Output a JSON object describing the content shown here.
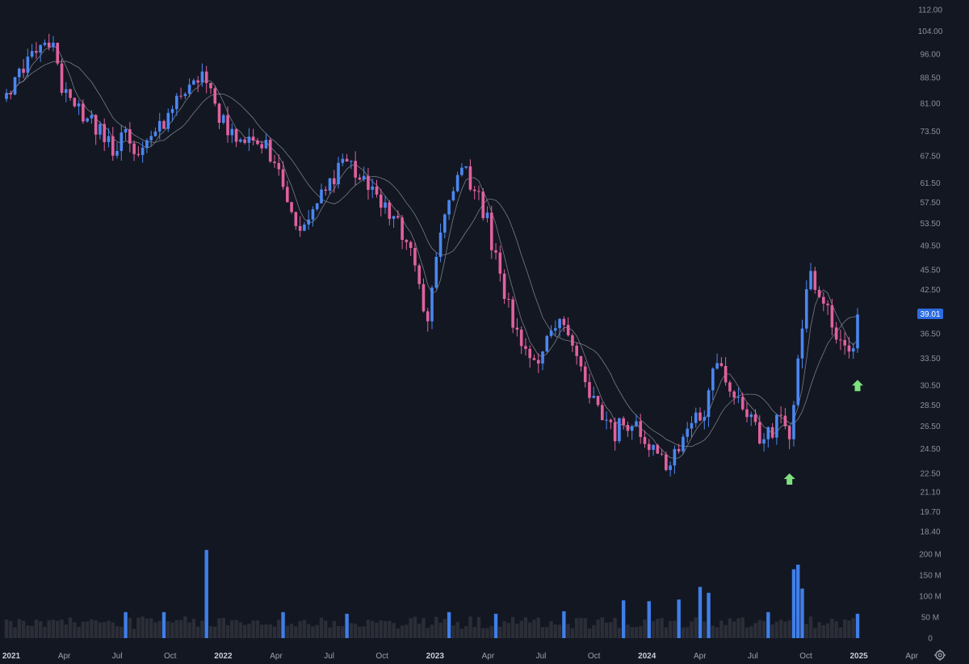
{
  "chart_data": {
    "type": "candlestick",
    "price_axis": {
      "scale": "log",
      "ticks": [
        "112.00",
        "104.00",
        "96.00",
        "88.50",
        "81.00",
        "73.50",
        "67.50",
        "61.50",
        "57.50",
        "53.50",
        "49.50",
        "45.50",
        "42.50",
        "36.50",
        "33.50",
        "30.50",
        "28.50",
        "26.50",
        "24.50",
        "22.50",
        "21.10",
        "19.70",
        "18.40"
      ],
      "last_price": "39.01"
    },
    "volume_axis": {
      "ticks": [
        "200 M",
        "150 M",
        "100 M",
        "50 M",
        "0"
      ],
      "max": 200
    },
    "time_axis": {
      "labels": [
        {
          "text": "2021",
          "year": true
        },
        {
          "text": "Apr",
          "year": false
        },
        {
          "text": "Jul",
          "year": false
        },
        {
          "text": "Oct",
          "year": false
        },
        {
          "text": "2022",
          "year": true
        },
        {
          "text": "Apr",
          "year": false
        },
        {
          "text": "Jul",
          "year": false
        },
        {
          "text": "Oct",
          "year": false
        },
        {
          "text": "2023",
          "year": true
        },
        {
          "text": "Apr",
          "year": false
        },
        {
          "text": "Jul",
          "year": false
        },
        {
          "text": "Oct",
          "year": false
        },
        {
          "text": "2024",
          "year": true
        },
        {
          "text": "Apr",
          "year": false
        },
        {
          "text": "Jul",
          "year": false
        },
        {
          "text": "Oct",
          "year": false
        },
        {
          "text": "2025",
          "year": true
        },
        {
          "text": "Apr",
          "year": false
        }
      ]
    },
    "anchors": [
      [
        0,
        83
      ],
      [
        6,
        95
      ],
      [
        11,
        102
      ],
      [
        13,
        86
      ],
      [
        16,
        80
      ],
      [
        19,
        76
      ],
      [
        22,
        74
      ],
      [
        25,
        70
      ],
      [
        28,
        72
      ],
      [
        31,
        68
      ],
      [
        34,
        71
      ],
      [
        37,
        76
      ],
      [
        40,
        82
      ],
      [
        43,
        86
      ],
      [
        45,
        90
      ],
      [
        48,
        83
      ],
      [
        51,
        76
      ],
      [
        54,
        72
      ],
      [
        57,
        73
      ],
      [
        60,
        70
      ],
      [
        63,
        67
      ],
      [
        66,
        58
      ],
      [
        69,
        52
      ],
      [
        72,
        55
      ],
      [
        76,
        62
      ],
      [
        80,
        66
      ],
      [
        84,
        62
      ],
      [
        88,
        58
      ],
      [
        93,
        52
      ],
      [
        96,
        46
      ],
      [
        99,
        38
      ],
      [
        101,
        48
      ],
      [
        104,
        58
      ],
      [
        107,
        64
      ],
      [
        110,
        61
      ],
      [
        113,
        54
      ],
      [
        116,
        44
      ],
      [
        119,
        38
      ],
      [
        122,
        35
      ],
      [
        125,
        34
      ],
      [
        128,
        36
      ],
      [
        131,
        38
      ],
      [
        134,
        34
      ],
      [
        137,
        30
      ],
      [
        140,
        27
      ],
      [
        143,
        26
      ],
      [
        146,
        27
      ],
      [
        149,
        26
      ],
      [
        152,
        24
      ],
      [
        155,
        23
      ],
      [
        158,
        24
      ],
      [
        161,
        27
      ],
      [
        164,
        28
      ],
      [
        167,
        34
      ],
      [
        169,
        31
      ],
      [
        172,
        29
      ],
      [
        175,
        27
      ],
      [
        178,
        25
      ],
      [
        181,
        27
      ],
      [
        184,
        26
      ],
      [
        187,
        38
      ],
      [
        189,
        46
      ],
      [
        191,
        41
      ],
      [
        194,
        38
      ],
      [
        196,
        36
      ],
      [
        199,
        34
      ],
      [
        200,
        39
      ]
    ],
    "volume_spikes": [
      {
        "week": 28,
        "value": 62
      },
      {
        "week": 37,
        "value": 62
      },
      {
        "week": 47,
        "value": 210
      },
      {
        "week": 65,
        "value": 62
      },
      {
        "week": 80,
        "value": 58
      },
      {
        "week": 104,
        "value": 62
      },
      {
        "week": 115,
        "value": 58
      },
      {
        "week": 131,
        "value": 64
      },
      {
        "week": 145,
        "value": 90
      },
      {
        "week": 151,
        "value": 88
      },
      {
        "week": 158,
        "value": 92
      },
      {
        "week": 163,
        "value": 122
      },
      {
        "week": 165,
        "value": 108
      },
      {
        "week": 179,
        "value": 62
      },
      {
        "week": 185,
        "value": 164
      },
      {
        "week": 186,
        "value": 175
      },
      {
        "week": 187,
        "value": 118
      },
      {
        "week": 200,
        "value": 58
      }
    ],
    "signals": [
      {
        "type": "up-arrow",
        "week": 184,
        "price": 22.5,
        "color": "#7ee07e"
      },
      {
        "type": "up-arrow",
        "week": 200,
        "price": 31.1,
        "color": "#7ee07e"
      }
    ],
    "colors": {
      "background": "#131722",
      "up": "#4a87f0",
      "down": "#e0619e",
      "ma": "#8a8e99",
      "volume": "#2b2e36",
      "volume_highlight": "#3f7fe8",
      "last_price_bg": "#2d6be0",
      "signal": "#7ee07e"
    }
  }
}
